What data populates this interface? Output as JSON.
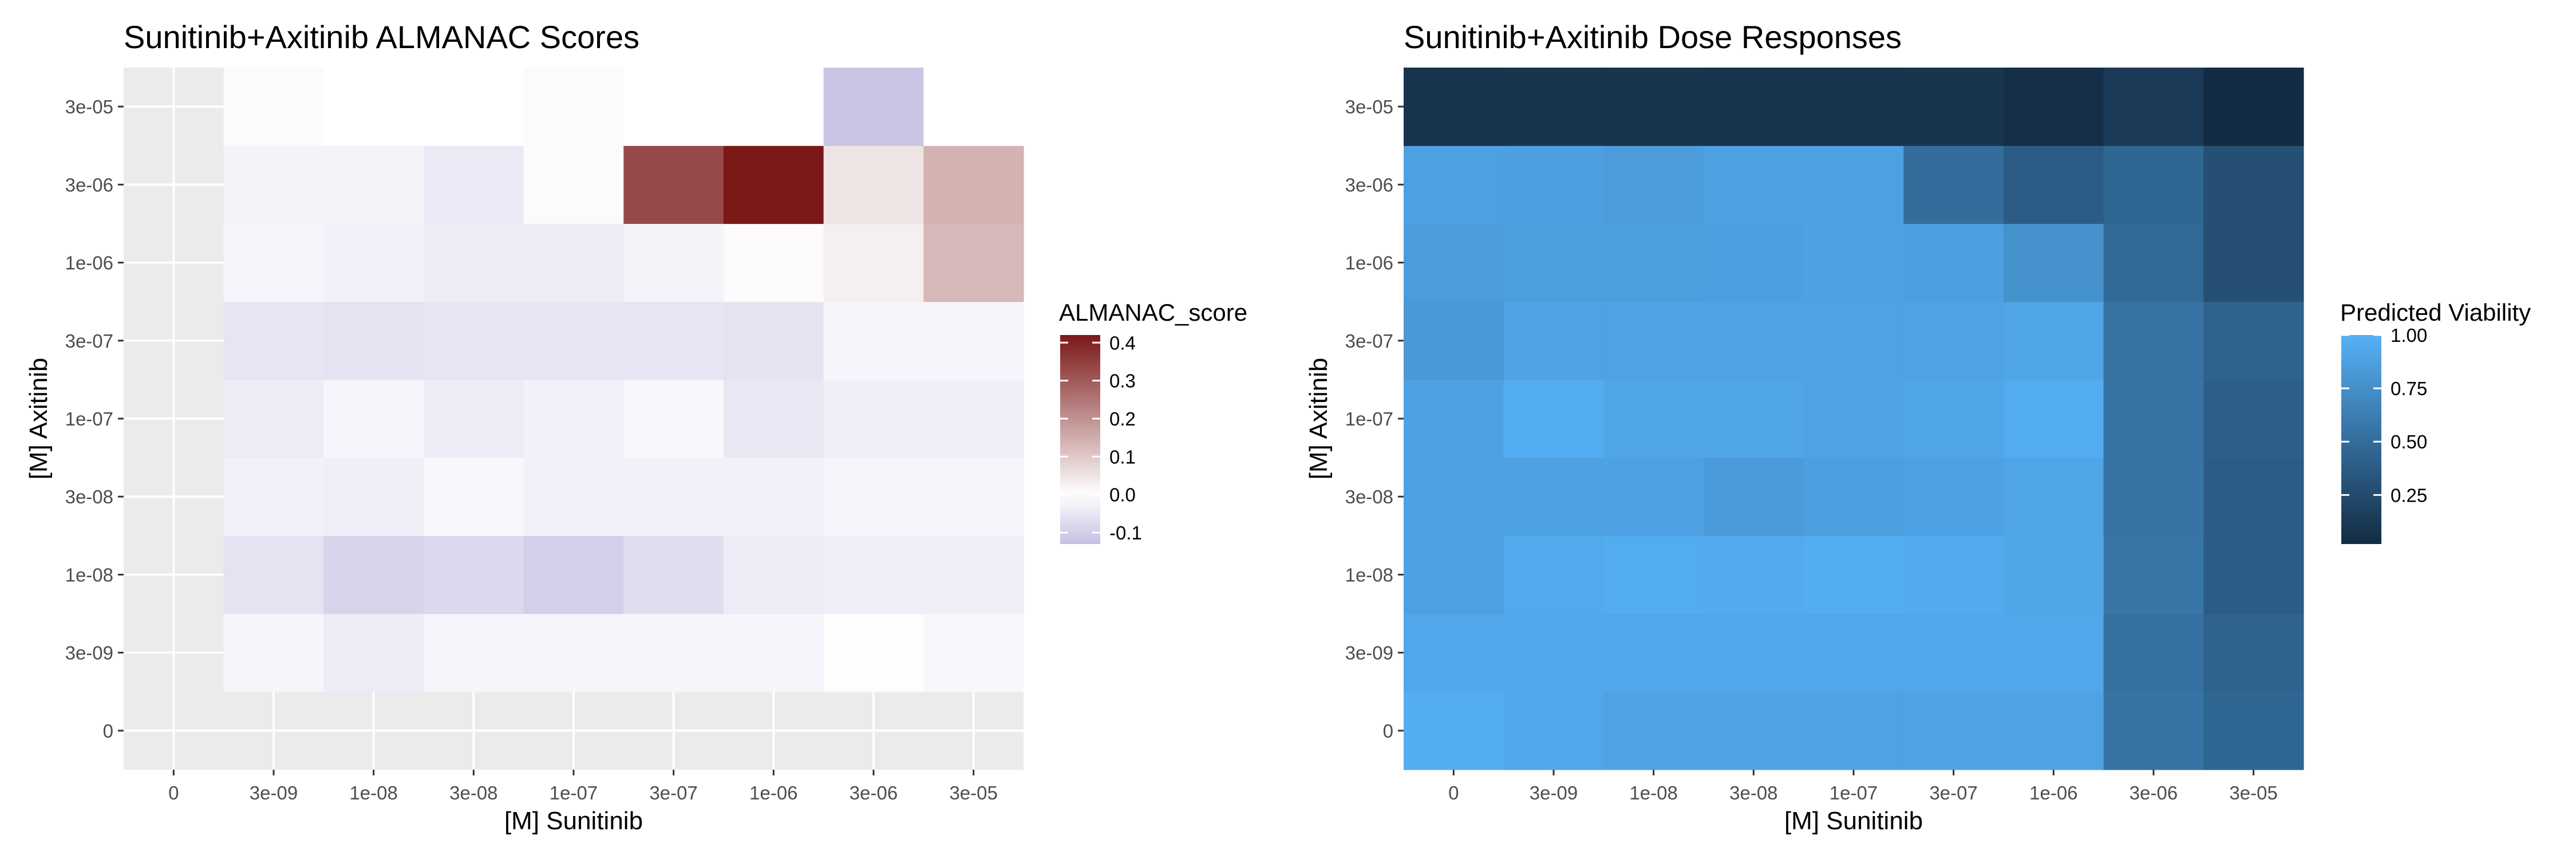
{
  "chart_data": [
    {
      "type": "heatmap",
      "title": "Sunitinib+Axitinib ALMANAC Scores",
      "xlabel": "[M] Sunitinib",
      "ylabel": "[M] Axitinib",
      "x_categories": [
        "0",
        "3e-09",
        "1e-08",
        "3e-08",
        "1e-07",
        "3e-07",
        "1e-06",
        "3e-06",
        "3e-05"
      ],
      "y_categories": [
        "0",
        "3e-09",
        "1e-08",
        "3e-08",
        "1e-07",
        "3e-07",
        "1e-06",
        "3e-06",
        "3e-05"
      ],
      "values": [
        [
          null,
          null,
          null,
          null,
          null,
          null,
          null,
          null,
          null
        ],
        [
          null,
          -0.02,
          -0.04,
          -0.02,
          -0.02,
          -0.02,
          -0.02,
          -0.005,
          -0.015
        ],
        [
          null,
          -0.06,
          -0.09,
          -0.08,
          -0.1,
          -0.07,
          -0.04,
          -0.035,
          -0.035
        ],
        [
          null,
          -0.03,
          -0.035,
          -0.015,
          -0.03,
          -0.03,
          -0.03,
          -0.02,
          -0.02
        ],
        [
          null,
          -0.04,
          -0.02,
          -0.04,
          -0.03,
          -0.015,
          -0.05,
          -0.035,
          -0.035
        ],
        [
          null,
          -0.055,
          -0.06,
          -0.055,
          -0.055,
          -0.055,
          -0.06,
          -0.02,
          -0.02
        ],
        [
          null,
          -0.02,
          -0.03,
          -0.04,
          -0.04,
          -0.025,
          0.01,
          0.03,
          0.13
        ],
        [
          null,
          -0.025,
          -0.025,
          -0.045,
          -0.01,
          0.33,
          0.42,
          0.05,
          0.14
        ],
        [
          null,
          -0.01,
          0.0,
          0.0,
          -0.01,
          0.0,
          0.0,
          -0.12,
          0.0
        ]
      ],
      "legend": {
        "title": "ALMANAC_score",
        "position": "right",
        "range": [
          -0.13,
          0.42
        ],
        "ticks": [
          -0.1,
          0.0,
          0.1,
          0.2,
          0.3,
          0.4
        ],
        "tick_labels": [
          "-0.1",
          "0.0",
          "0.1",
          "0.2",
          "0.3",
          "0.4"
        ],
        "colors": {
          "low": "#c6c0e2",
          "mid": "#ffffff",
          "high": "#7b1818"
        }
      },
      "grid": true
    },
    {
      "type": "heatmap",
      "title": "Sunitinib+Axitinib Dose Responses",
      "xlabel": "[M] Sunitinib",
      "ylabel": "[M] Axitinib",
      "x_categories": [
        "0",
        "3e-09",
        "1e-08",
        "3e-08",
        "1e-07",
        "3e-07",
        "1e-06",
        "3e-06",
        "3e-05"
      ],
      "y_categories": [
        "0",
        "3e-09",
        "1e-08",
        "3e-08",
        "1e-07",
        "3e-07",
        "1e-06",
        "3e-06",
        "3e-05"
      ],
      "values": [
        [
          0.97,
          0.93,
          0.9,
          0.9,
          0.9,
          0.9,
          0.9,
          0.55,
          0.45
        ],
        [
          0.93,
          0.93,
          0.93,
          0.93,
          0.93,
          0.93,
          0.93,
          0.53,
          0.43
        ],
        [
          0.88,
          0.94,
          0.96,
          0.95,
          0.97,
          0.95,
          0.92,
          0.57,
          0.38
        ],
        [
          0.88,
          0.88,
          0.89,
          0.84,
          0.87,
          0.89,
          0.91,
          0.55,
          0.38
        ],
        [
          0.88,
          0.96,
          0.92,
          0.92,
          0.9,
          0.92,
          0.96,
          0.55,
          0.4
        ],
        [
          0.82,
          0.9,
          0.9,
          0.9,
          0.9,
          0.9,
          0.91,
          0.54,
          0.43
        ],
        [
          0.85,
          0.86,
          0.86,
          0.87,
          0.89,
          0.87,
          0.77,
          0.47,
          0.28
        ],
        [
          0.88,
          0.87,
          0.85,
          0.88,
          0.88,
          0.5,
          0.38,
          0.45,
          0.28
        ],
        [
          0.08,
          0.09,
          0.09,
          0.08,
          0.08,
          0.09,
          0.05,
          0.13,
          0.02
        ]
      ],
      "legend": {
        "title": "Predicted Viability",
        "position": "right",
        "range": [
          0.02,
          1.0
        ],
        "ticks": [
          0.25,
          0.5,
          0.75,
          1.0
        ],
        "tick_labels": [
          "0.25",
          "0.50",
          "0.75",
          "1.00"
        ],
        "colors": {
          "low": "#132b43",
          "high": "#56b1f7"
        }
      },
      "grid": true
    }
  ]
}
